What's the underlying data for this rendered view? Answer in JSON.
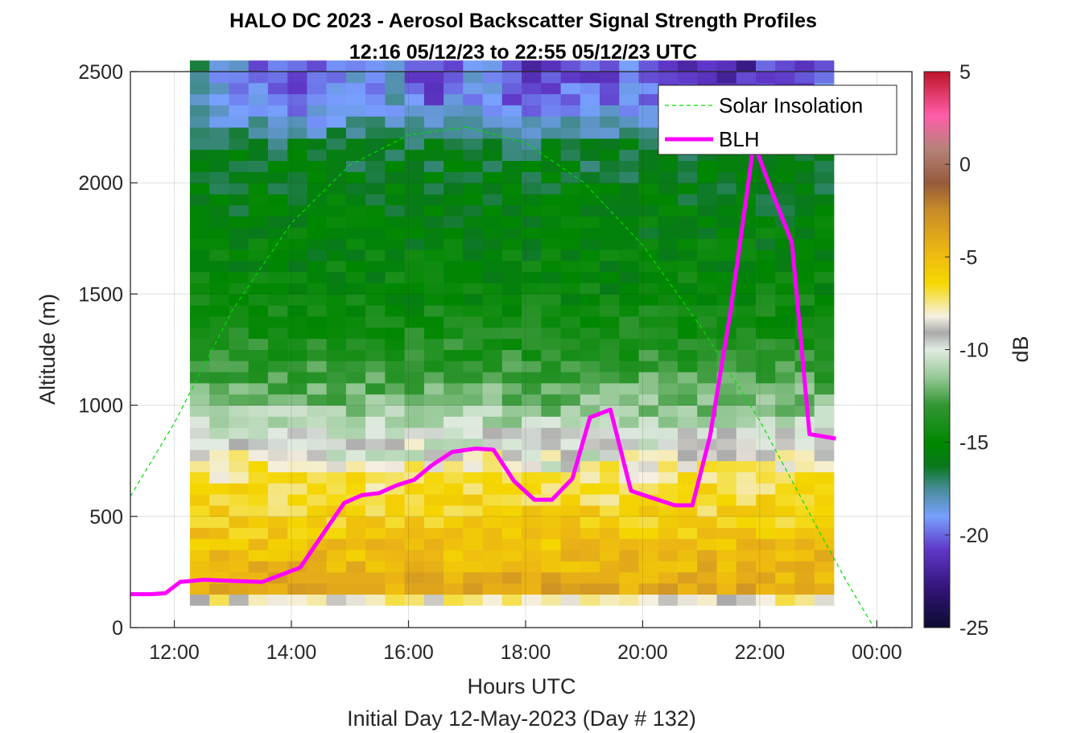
{
  "chart_data": {
    "type": "heatmap",
    "title_lines": [
      "HALO DC 2023 - Aerosol Backscatter Signal Strength Profiles",
      "12:16 05/12/23 to 22:55 05/12/23  UTC"
    ],
    "xlabel": "Hours UTC",
    "footer": "Initial Day 12-May-2023 (Day # 132)",
    "ylabel": "Altitude (m)",
    "colorbar_label": "dB",
    "xlim": [
      11.25,
      24.6
    ],
    "ylim": [
      0,
      2500
    ],
    "x_ticks": [
      {
        "value": 12,
        "label": "12:00"
      },
      {
        "value": 14,
        "label": "14:00"
      },
      {
        "value": 16,
        "label": "16:00"
      },
      {
        "value": 18,
        "label": "18:00"
      },
      {
        "value": 20,
        "label": "20:00"
      },
      {
        "value": 22,
        "label": "22:00"
      },
      {
        "value": 24,
        "label": "00:00"
      }
    ],
    "y_ticks": [
      {
        "value": 0,
        "label": "0"
      },
      {
        "value": 500,
        "label": "500"
      },
      {
        "value": 1000,
        "label": "1000"
      },
      {
        "value": 1500,
        "label": "1500"
      },
      {
        "value": 2000,
        "label": "2000"
      },
      {
        "value": 2500,
        "label": "2500"
      }
    ],
    "clim": [
      -25,
      5
    ],
    "c_ticks": [
      {
        "value": 5,
        "label": "5"
      },
      {
        "value": 0,
        "label": "0"
      },
      {
        "value": -5,
        "label": "-5"
      },
      {
        "value": -10,
        "label": "-10"
      },
      {
        "value": -15,
        "label": "-15"
      },
      {
        "value": -20,
        "label": "-20"
      },
      {
        "value": -25,
        "label": "-25"
      }
    ],
    "grid": true,
    "legend_position": "top-right",
    "heatmap": {
      "x_start": 12.2667,
      "x_step": 0.3333,
      "x_count": 33,
      "y_start": 100,
      "y_step": 50,
      "y_count": 49,
      "profile": [
        {
          "altitude": 100,
          "value": -8
        },
        {
          "altitude": 150,
          "value": -4
        },
        {
          "altitude": 450,
          "value": -6
        },
        {
          "altitude": 700,
          "value": -7.5
        },
        {
          "altitude": 800,
          "value": -9
        },
        {
          "altitude": 900,
          "value": -11
        },
        {
          "altitude": 1000,
          "value": -12
        },
        {
          "altitude": 1200,
          "value": -13.5
        },
        {
          "altitude": 1500,
          "value": -15
        },
        {
          "altitude": 2000,
          "value": -16
        },
        {
          "altitude": 2150,
          "value": -16.5
        },
        {
          "altitude": 2350,
          "value": -19
        },
        {
          "altitude": 2500,
          "value": -21
        }
      ],
      "columns": [
        {
          "time": 12.27,
          "top_dB": -17,
          "boundary_m": 800
        },
        {
          "time": 12.6,
          "top_dB": -18,
          "boundary_m": 800
        },
        {
          "time": 12.93,
          "top_dB": -19,
          "boundary_m": 820
        },
        {
          "time": 13.27,
          "top_dB": -19.5,
          "boundary_m": 820
        },
        {
          "time": 13.6,
          "top_dB": -20,
          "boundary_m": 800
        },
        {
          "time": 13.93,
          "top_dB": -20.5,
          "boundary_m": 780
        },
        {
          "time": 14.27,
          "top_dB": -20,
          "boundary_m": 780
        },
        {
          "time": 14.6,
          "top_dB": -19.5,
          "boundary_m": 760
        },
        {
          "time": 14.93,
          "top_dB": -19,
          "boundary_m": 760
        },
        {
          "time": 15.27,
          "top_dB": -18.5,
          "boundary_m": 760
        },
        {
          "time": 15.6,
          "top_dB": -18,
          "boundary_m": 760
        },
        {
          "time": 15.93,
          "top_dB": -20,
          "boundary_m": 760
        },
        {
          "time": 16.27,
          "top_dB": -21,
          "boundary_m": 780
        },
        {
          "time": 16.6,
          "top_dB": -20,
          "boundary_m": 800
        },
        {
          "time": 16.93,
          "top_dB": -19,
          "boundary_m": 800
        },
        {
          "time": 17.27,
          "top_dB": -19.5,
          "boundary_m": 800
        },
        {
          "time": 17.6,
          "top_dB": -21,
          "boundary_m": 780
        },
        {
          "time": 17.93,
          "top_dB": -22,
          "boundary_m": 760
        },
        {
          "time": 18.27,
          "top_dB": -21,
          "boundary_m": 720
        },
        {
          "time": 18.6,
          "top_dB": -20,
          "boundary_m": 720
        },
        {
          "time": 18.93,
          "top_dB": -20.5,
          "boundary_m": 740
        },
        {
          "time": 19.27,
          "top_dB": -20,
          "boundary_m": 760
        },
        {
          "time": 19.6,
          "top_dB": -19.5,
          "boundary_m": 780
        },
        {
          "time": 19.93,
          "top_dB": -20,
          "boundary_m": 800
        },
        {
          "time": 20.27,
          "top_dB": -20.5,
          "boundary_m": 820
        },
        {
          "time": 20.6,
          "top_dB": -21,
          "boundary_m": 840
        },
        {
          "time": 20.93,
          "top_dB": -21.5,
          "boundary_m": 860
        },
        {
          "time": 21.27,
          "top_dB": -22,
          "boundary_m": 860
        },
        {
          "time": 21.6,
          "top_dB": -21.5,
          "boundary_m": 860
        },
        {
          "time": 21.93,
          "top_dB": -21,
          "boundary_m": 860
        },
        {
          "time": 22.27,
          "top_dB": -21,
          "boundary_m": 860
        },
        {
          "time": 22.6,
          "top_dB": -20.5,
          "boundary_m": 860
        },
        {
          "time": 22.93,
          "top_dB": -20,
          "boundary_m": 840
        }
      ]
    },
    "series": [
      {
        "name": "Solar Insolation",
        "style": "dashed",
        "color": "#00dd00",
        "points": [
          [
            11.25,
            590
          ],
          [
            12,
            920
          ],
          [
            13,
            1430
          ],
          [
            14,
            1820
          ],
          [
            15,
            2080
          ],
          [
            16,
            2215
          ],
          [
            17,
            2250
          ],
          [
            18,
            2180
          ],
          [
            19,
            2000
          ],
          [
            20,
            1720
          ],
          [
            21,
            1350
          ],
          [
            22,
            930
          ],
          [
            23,
            440
          ],
          [
            23.5,
            200
          ],
          [
            23.95,
            0
          ],
          [
            24.6,
            0
          ]
        ]
      },
      {
        "name": "BLH",
        "style": "solid",
        "color": "#ff00ff",
        "points": [
          [
            11.25,
            150
          ],
          [
            11.6,
            150
          ],
          [
            11.85,
            155
          ],
          [
            12.1,
            205
          ],
          [
            12.5,
            215
          ],
          [
            13,
            210
          ],
          [
            13.5,
            205
          ],
          [
            14.15,
            270
          ],
          [
            14.9,
            560
          ],
          [
            15.2,
            595
          ],
          [
            15.5,
            605
          ],
          [
            15.8,
            640
          ],
          [
            16.1,
            665
          ],
          [
            16.4,
            730
          ],
          [
            16.75,
            790
          ],
          [
            17.15,
            805
          ],
          [
            17.45,
            800
          ],
          [
            17.8,
            660
          ],
          [
            18.15,
            575
          ],
          [
            18.45,
            575
          ],
          [
            18.8,
            670
          ],
          [
            19.1,
            945
          ],
          [
            19.45,
            980
          ],
          [
            19.8,
            615
          ],
          [
            20.2,
            580
          ],
          [
            20.55,
            550
          ],
          [
            20.85,
            550
          ],
          [
            21.15,
            860
          ],
          [
            21.5,
            1420
          ],
          [
            21.9,
            2180
          ],
          [
            22.15,
            2000
          ],
          [
            22.55,
            1730
          ],
          [
            22.85,
            870
          ],
          [
            23.3,
            850
          ]
        ]
      }
    ]
  }
}
